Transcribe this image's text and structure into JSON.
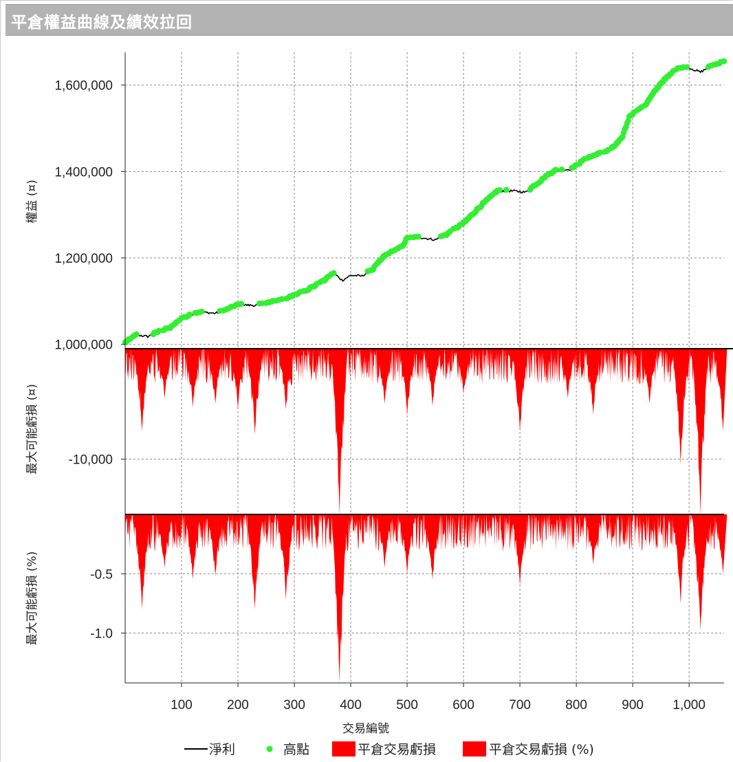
{
  "window": {
    "title": "平倉權益曲線及績效拉回"
  },
  "chart_data": {
    "type": "line",
    "x": {
      "label": "交易編號",
      "range": [
        0,
        1062
      ],
      "ticks": [
        100,
        200,
        300,
        400,
        500,
        600,
        700,
        800,
        900,
        1000
      ],
      "tick_labels": [
        "100",
        "200",
        "300",
        "400",
        "500",
        "600",
        "700",
        "800",
        "900",
        "1,000"
      ]
    },
    "panels": [
      {
        "id": "equity",
        "ylabel": "權益 (¤)",
        "ylim": [
          990000,
          1676000
        ],
        "yticks": [
          1000000,
          1200000,
          1400000,
          1600000
        ],
        "ytick_labels": [
          "1,000,000",
          "1,200,000",
          "1,400,000",
          "1,600,000"
        ],
        "series": [
          {
            "name": "淨利",
            "type": "line",
            "color": "#000000",
            "anchors": [
              [
                0,
                1004000
              ],
              [
                20,
                1022000
              ],
              [
                40,
                1018000
              ],
              [
                60,
                1030000
              ],
              [
                80,
                1038000
              ],
              [
                100,
                1060000
              ],
              [
                130,
                1075000
              ],
              [
                160,
                1072000
              ],
              [
                180,
                1080000
              ],
              [
                200,
                1092000
              ],
              [
                230,
                1090000
              ],
              [
                260,
                1098000
              ],
              [
                290,
                1108000
              ],
              [
                320,
                1125000
              ],
              [
                350,
                1145000
              ],
              [
                370,
                1165000
              ],
              [
                385,
                1148000
              ],
              [
                400,
                1160000
              ],
              [
                420,
                1158000
              ],
              [
                440,
                1175000
              ],
              [
                460,
                1205000
              ],
              [
                490,
                1225000
              ],
              [
                500,
                1245000
              ],
              [
                520,
                1248000
              ],
              [
                550,
                1242000
              ],
              [
                570,
                1255000
              ],
              [
                600,
                1280000
              ],
              [
                630,
                1320000
              ],
              [
                660,
                1355000
              ],
              [
                690,
                1355000
              ],
              [
                710,
                1352000
              ],
              [
                730,
                1372000
              ],
              [
                760,
                1402000
              ],
              [
                790,
                1405000
              ],
              [
                820,
                1432000
              ],
              [
                860,
                1450000
              ],
              [
                880,
                1475000
              ],
              [
                895,
                1530000
              ],
              [
                920,
                1550000
              ],
              [
                950,
                1605000
              ],
              [
                980,
                1640000
              ],
              [
                1000,
                1640000
              ],
              [
                1020,
                1630000
              ],
              [
                1040,
                1645000
              ],
              [
                1062,
                1655000
              ]
            ]
          },
          {
            "name": "高點",
            "type": "scatter",
            "color": "#33ee33"
          }
        ]
      },
      {
        "id": "drawdown_abs",
        "ylabel": "最大可能虧損 (¤)",
        "ylim": [
          -15000,
          0
        ],
        "yticks": [
          -10000
        ],
        "ytick_labels": [
          "-10,000"
        ],
        "series": [
          {
            "name": "平倉交易虧損",
            "type": "area",
            "color": "#ff0000",
            "peaks": [
              [
                30,
                -7500
              ],
              [
                70,
                -4500
              ],
              [
                120,
                -5300
              ],
              [
                160,
                -5000
              ],
              [
                200,
                -5500
              ],
              [
                230,
                -7800
              ],
              [
                285,
                -5500
              ],
              [
                380,
                -15000
              ],
              [
                460,
                -5000
              ],
              [
                500,
                -6000
              ],
              [
                545,
                -5200
              ],
              [
                600,
                -4000
              ],
              [
                700,
                -7500
              ],
              [
                785,
                -4500
              ],
              [
                830,
                -6000
              ],
              [
                930,
                -5000
              ],
              [
                985,
                -10500
              ],
              [
                1020,
                -15000
              ],
              [
                1060,
                -7500
              ]
            ]
          }
        ]
      },
      {
        "id": "drawdown_pct",
        "ylabel": "最大可能虧損 (%)",
        "ylim": [
          -1.42,
          0
        ],
        "yticks": [
          -0.5,
          -1.0
        ],
        "ytick_labels": [
          "-0.5",
          "-1.0"
        ],
        "series": [
          {
            "name": "平倉交易虧損 (%)",
            "type": "area",
            "color": "#ff0000",
            "peaks": [
              [
                30,
                -0.8
              ],
              [
                70,
                -0.45
              ],
              [
                120,
                -0.55
              ],
              [
                160,
                -0.52
              ],
              [
                230,
                -0.8
              ],
              [
                285,
                -0.72
              ],
              [
                380,
                -1.42
              ],
              [
                460,
                -0.45
              ],
              [
                500,
                -0.5
              ],
              [
                545,
                -0.55
              ],
              [
                700,
                -0.6
              ],
              [
                830,
                -0.42
              ],
              [
                985,
                -0.75
              ],
              [
                1020,
                -0.98
              ],
              [
                1060,
                -0.5
              ]
            ]
          }
        ]
      }
    ],
    "legend": {
      "placement": "bottom",
      "items": [
        {
          "label": "淨利",
          "symbol": "line",
          "color": "#000000"
        },
        {
          "label": "高點",
          "symbol": "dot",
          "color": "#33ee33"
        },
        {
          "label": "平倉交易虧損",
          "symbol": "box",
          "color": "#ff0000"
        },
        {
          "label": "平倉交易虧損 (%)",
          "symbol": "box",
          "color": "#ff0000"
        }
      ]
    }
  }
}
